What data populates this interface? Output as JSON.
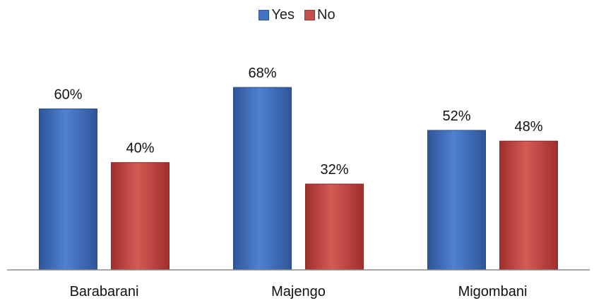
{
  "chart_data": {
    "type": "bar",
    "categories": [
      "Barabarani",
      "Majengo",
      "Migombani"
    ],
    "series": [
      {
        "name": "Yes",
        "values": [
          60,
          68,
          52
        ],
        "labels": [
          "60%",
          "68%",
          "52%"
        ],
        "color": "#4472c4"
      },
      {
        "name": "No",
        "values": [
          40,
          32,
          48
        ],
        "labels": [
          "40%",
          "32%",
          "48%"
        ],
        "color": "#c0504d"
      }
    ],
    "ylim": [
      0,
      100
    ],
    "unit": "%",
    "grid": false,
    "legend_position": "top-center"
  }
}
